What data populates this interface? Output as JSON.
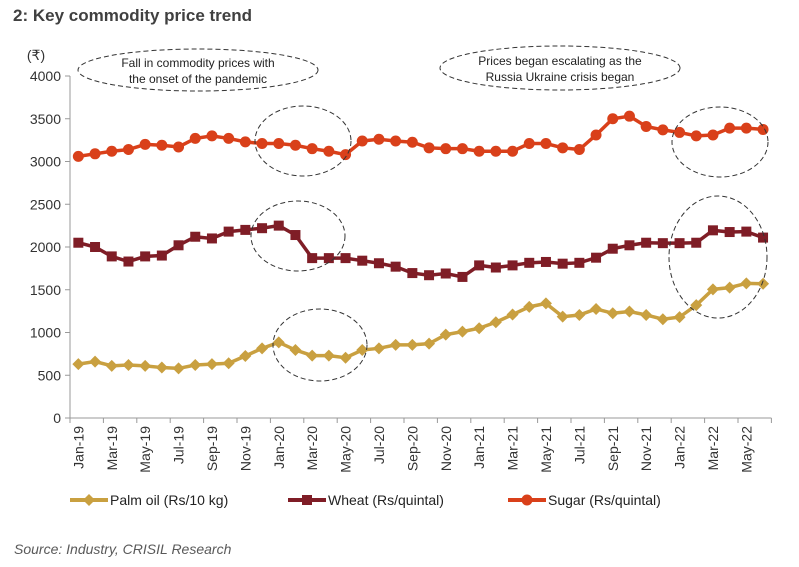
{
  "title": "2: Key commodity price trend",
  "source": "Source: Industry, CRISIL Research",
  "chart_data": {
    "type": "line",
    "title": "2: Key commodity price trend",
    "ylabel": "(₹)",
    "ylim": [
      0,
      4000
    ],
    "yticks": [
      0,
      500,
      1000,
      1500,
      2000,
      2500,
      3000,
      3500,
      4000
    ],
    "grid": false,
    "legend_position": "bottom",
    "categories": [
      "Jan-19",
      "Feb-19",
      "Mar-19",
      "Apr-19",
      "May-19",
      "Jun-19",
      "Jul-19",
      "Aug-19",
      "Sep-19",
      "Oct-19",
      "Nov-19",
      "Dec-19",
      "Jan-20",
      "Feb-20",
      "Mar-20",
      "Apr-20",
      "May-20",
      "Jun-20",
      "Jul-20",
      "Aug-20",
      "Sep-20",
      "Oct-20",
      "Nov-20",
      "Dec-20",
      "Jan-21",
      "Feb-21",
      "Mar-21",
      "Apr-21",
      "May-21",
      "Jun-21",
      "Jul-21",
      "Aug-21",
      "Sep-21",
      "Oct-21",
      "Nov-21",
      "Dec-21",
      "Jan-22",
      "Feb-22",
      "Mar-22",
      "Apr-22",
      "May-22",
      "Jun-22"
    ],
    "xtick_labels": [
      "Jan-19",
      "Mar-19",
      "May-19",
      "Jul-19",
      "Sep-19",
      "Nov-19",
      "Jan-20",
      "Mar-20",
      "May-20",
      "Jul-20",
      "Sep-20",
      "Nov-20",
      "Jan-21",
      "Mar-21",
      "May-21",
      "Jul-21",
      "Sep-21",
      "Nov-21",
      "Jan-22",
      "Mar-22",
      "May-22"
    ],
    "series": [
      {
        "name": "Palm oil (Rs/10 kg)",
        "color": "#C9A040",
        "marker": "diamond",
        "values": [
          630,
          660,
          610,
          620,
          610,
          590,
          580,
          620,
          630,
          640,
          725,
          815,
          885,
          795,
          730,
          730,
          705,
          795,
          815,
          855,
          855,
          870,
          975,
          1010,
          1050,
          1120,
          1210,
          1300,
          1340,
          1185,
          1205,
          1275,
          1225,
          1245,
          1205,
          1155,
          1180,
          1320,
          1505,
          1525,
          1575,
          1570
        ]
      },
      {
        "name": "Wheat (Rs/quintal)",
        "color": "#7F1D26",
        "marker": "square",
        "values": [
          2050,
          2000,
          1890,
          1830,
          1890,
          1900,
          2020,
          2120,
          2100,
          2180,
          2200,
          2220,
          2250,
          2140,
          1870,
          1870,
          1870,
          1840,
          1810,
          1770,
          1695,
          1670,
          1690,
          1650,
          1785,
          1760,
          1785,
          1815,
          1825,
          1805,
          1815,
          1875,
          1980,
          2020,
          2050,
          2045,
          2045,
          2050,
          2195,
          2175,
          2180,
          2110
        ]
      },
      {
        "name": "Sugar (Rs/quintal)",
        "color": "#D9401A",
        "marker": "circle",
        "values": [
          3060,
          3090,
          3120,
          3140,
          3200,
          3190,
          3170,
          3270,
          3300,
          3270,
          3230,
          3210,
          3210,
          3190,
          3150,
          3120,
          3080,
          3240,
          3260,
          3240,
          3225,
          3160,
          3150,
          3150,
          3120,
          3120,
          3120,
          3210,
          3210,
          3160,
          3140,
          3310,
          3500,
          3530,
          3410,
          3370,
          3340,
          3300,
          3310,
          3390,
          3390,
          3375
        ]
      }
    ],
    "annotations": [
      {
        "text": [
          "Fall in commodity prices with",
          "the onset of the pandemic"
        ]
      },
      {
        "text": [
          "Prices began escalating as the",
          "Russia Ukraine crisis began"
        ]
      }
    ]
  }
}
